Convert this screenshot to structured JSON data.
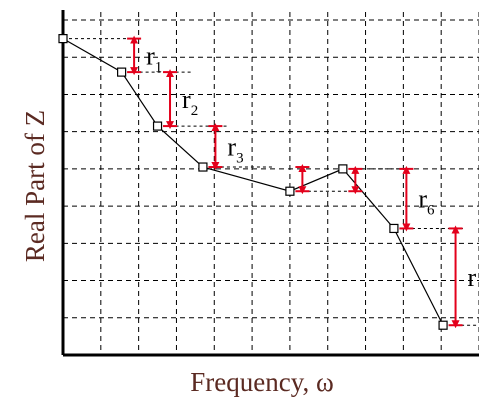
{
  "chart_data": {
    "type": "line",
    "xlabel": "Frequency,  ω",
    "ylabel": "Real Part of Z",
    "grid": true,
    "axis_color": "#000000",
    "label_color": "#5b2a22",
    "line_color": "#000000",
    "arrow_color": "#e3001b",
    "marker": "open-square",
    "xlim": [
      0,
      11
    ],
    "ylim": [
      0,
      9
    ],
    "points": [
      {
        "x": 0.0,
        "y": 8.5
      },
      {
        "x": 1.55,
        "y": 7.6
      },
      {
        "x": 2.5,
        "y": 6.15
      },
      {
        "x": 3.7,
        "y": 5.05
      },
      {
        "x": 6.0,
        "y": 4.4
      },
      {
        "x": 7.4,
        "y": 5.0
      },
      {
        "x": 8.75,
        "y": 3.4
      },
      {
        "x": 10.05,
        "y": 0.8
      }
    ],
    "residuals": [
      {
        "label": "r",
        "sub": "1",
        "x": 1.88,
        "y_top": 8.5,
        "y_bot": 7.6
      },
      {
        "label": "r",
        "sub": "2",
        "x": 2.83,
        "y_top": 7.6,
        "y_bot": 6.15
      },
      {
        "label": "r",
        "sub": "3",
        "x": 4.03,
        "y_top": 6.15,
        "y_bot": 5.05
      },
      {
        "label": "",
        "sub": "",
        "x": 6.33,
        "y_top": 5.05,
        "y_bot": 4.4
      },
      {
        "label": "",
        "sub": "",
        "x": 7.73,
        "y_top": 5.0,
        "y_bot": 4.4
      },
      {
        "label": "r",
        "sub": "6",
        "x": 9.08,
        "y_top": 5.0,
        "y_bot": 3.4
      },
      {
        "label": "r",
        "sub": "",
        "x": 10.38,
        "y_top": 3.4,
        "y_bot": 0.8
      }
    ]
  }
}
